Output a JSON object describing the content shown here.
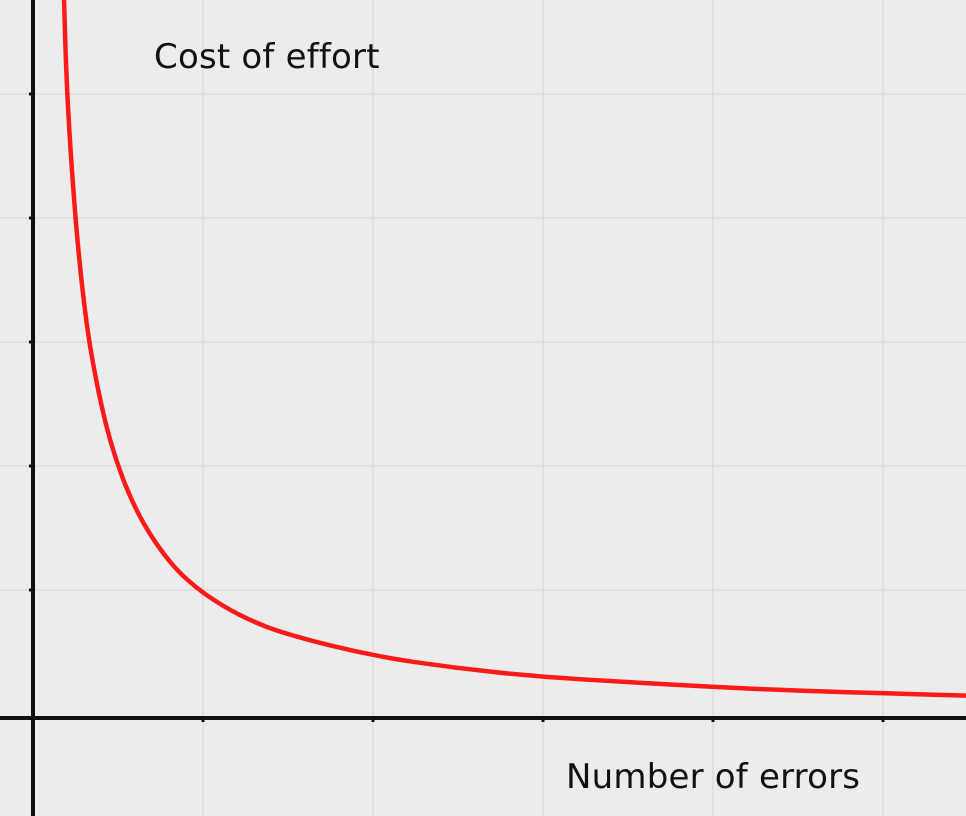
{
  "chart_data": {
    "type": "line",
    "title": "",
    "xlabel": "Number of errors",
    "ylabel": "Cost of effort",
    "grid": true,
    "series": [
      {
        "color": "#ff1a1a",
        "values": [
          {
            "x": 0.18,
            "y": 5.9
          },
          {
            "x": 0.2,
            "y": 5.0
          },
          {
            "x": 0.25,
            "y": 4.0
          },
          {
            "x": 0.3,
            "y": 3.33
          },
          {
            "x": 0.35,
            "y": 2.86
          },
          {
            "x": 0.45,
            "y": 2.22
          },
          {
            "x": 0.6,
            "y": 1.67
          },
          {
            "x": 0.8,
            "y": 1.25
          },
          {
            "x": 1.0,
            "y": 1.0
          },
          {
            "x": 1.25,
            "y": 0.8
          },
          {
            "x": 1.5,
            "y": 0.67
          },
          {
            "x": 2.0,
            "y": 0.5
          },
          {
            "x": 2.5,
            "y": 0.4
          },
          {
            "x": 3.0,
            "y": 0.33
          },
          {
            "x": 3.5,
            "y": 0.29
          },
          {
            "x": 4.0,
            "y": 0.25
          },
          {
            "x": 4.5,
            "y": 0.22
          },
          {
            "x": 5.0,
            "y": 0.2
          },
          {
            "x": 5.5,
            "y": 0.18
          }
        ]
      }
    ]
  },
  "colors": {
    "background": "#ececec",
    "grid": "#dddddd",
    "axis": "#111111",
    "curve": "#ff1a1a"
  }
}
